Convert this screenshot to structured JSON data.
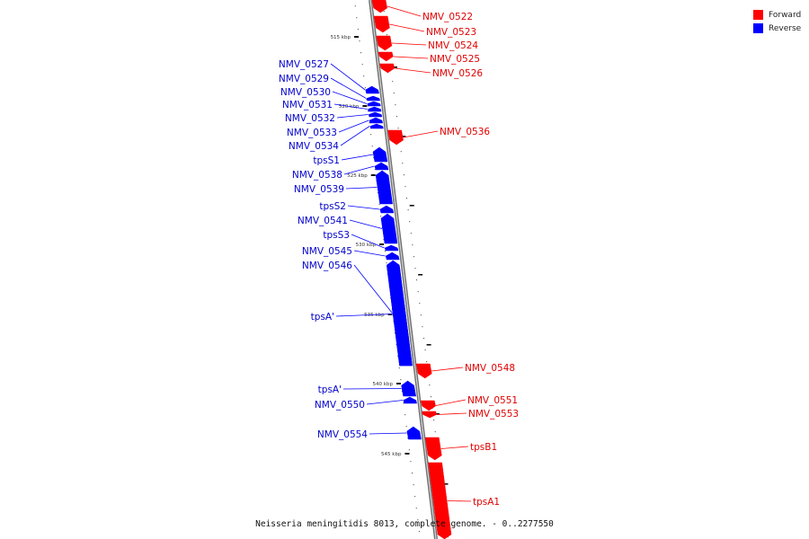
{
  "caption": "Neisseria meningitidis 8013, complete genome. - 0..2277550",
  "legend": [
    {
      "label": "Forward",
      "color": "#ff0000"
    },
    {
      "label": "Reverse",
      "color": "#0000ff"
    }
  ],
  "colors": {
    "forward": "#ff0000",
    "reverse": "#0000ff",
    "forward_label": "#e00000",
    "reverse_label": "#0000cc",
    "backbone": "#9a9a9a"
  },
  "ticks": [
    "515 kbp",
    "520 kbp",
    "525 kbp",
    "530 kbp",
    "535 kbp",
    "540 kbp",
    "545 kbp"
  ],
  "genes": [
    {
      "name": "NMV_0522",
      "strand": "forward"
    },
    {
      "name": "NMV_0523",
      "strand": "forward"
    },
    {
      "name": "NMV_0524",
      "strand": "forward"
    },
    {
      "name": "NMV_0525",
      "strand": "forward"
    },
    {
      "name": "NMV_0526",
      "strand": "forward"
    },
    {
      "name": "NMV_0527",
      "strand": "reverse"
    },
    {
      "name": "NMV_0529",
      "strand": "reverse"
    },
    {
      "name": "NMV_0530",
      "strand": "reverse"
    },
    {
      "name": "NMV_0531",
      "strand": "reverse"
    },
    {
      "name": "NMV_0532",
      "strand": "reverse"
    },
    {
      "name": "NMV_0533",
      "strand": "reverse"
    },
    {
      "name": "NMV_0534",
      "strand": "reverse"
    },
    {
      "name": "NMV_0536",
      "strand": "forward"
    },
    {
      "name": "tpsS1",
      "strand": "reverse"
    },
    {
      "name": "NMV_0538",
      "strand": "reverse"
    },
    {
      "name": "NMV_0539",
      "strand": "reverse"
    },
    {
      "name": "tpsS2",
      "strand": "reverse"
    },
    {
      "name": "NMV_0541",
      "strand": "reverse"
    },
    {
      "name": "tpsS3",
      "strand": "reverse"
    },
    {
      "name": "NMV_0545",
      "strand": "reverse"
    },
    {
      "name": "NMV_0546",
      "strand": "reverse"
    },
    {
      "name": "tpsA'",
      "strand": "reverse"
    },
    {
      "name": "NMV_0548",
      "strand": "forward"
    },
    {
      "name": "tpsA'",
      "strand": "reverse"
    },
    {
      "name": "NMV_0550",
      "strand": "reverse"
    },
    {
      "name": "NMV_0551",
      "strand": "forward"
    },
    {
      "name": "NMV_0553",
      "strand": "forward"
    },
    {
      "name": "NMV_0554",
      "strand": "reverse"
    },
    {
      "name": "tpsB1",
      "strand": "forward"
    },
    {
      "name": "tpsA1",
      "strand": "forward"
    }
  ]
}
